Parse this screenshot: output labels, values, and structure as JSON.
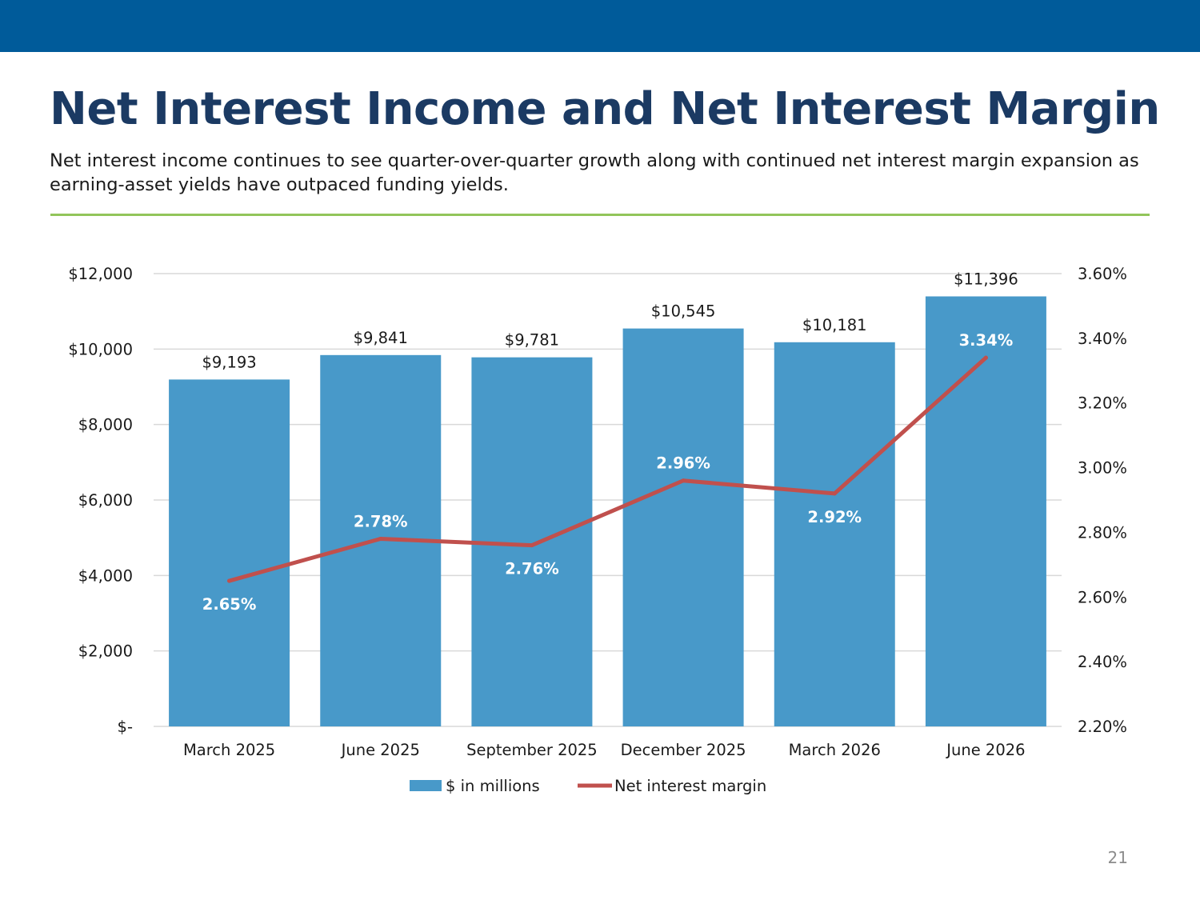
{
  "header": {
    "title": "Net Interest Income and Net Interest Margin",
    "subtitle": "Net interest income continues to see quarter-over-quarter growth along with continued net interest margin expansion as earning-asset yields have outpaced funding yields."
  },
  "colors": {
    "top_bar": "#005b9a",
    "title": "#1b3a63",
    "divider": "#92c55a",
    "bar": "#4899c9",
    "line": "#c0504d",
    "gridline": "#d9d9d9"
  },
  "chart_data": {
    "type": "bar",
    "categories": [
      "March 2025",
      "June 2025",
      "September 2025",
      "December 2025",
      "March 2026",
      "June 2026"
    ],
    "series": [
      {
        "name": "$ in millions",
        "type": "bar",
        "axis": "left",
        "values": [
          9193,
          9841,
          9781,
          10545,
          10181,
          11396
        ],
        "labels": [
          "$9,193",
          "$9,841",
          "$9,781",
          "$10,545",
          "$10,181",
          "$11,396"
        ]
      },
      {
        "name": "Net interest margin",
        "type": "line",
        "axis": "right",
        "values": [
          2.65,
          2.78,
          2.76,
          2.96,
          2.92,
          3.34
        ],
        "labels": [
          "2.65%",
          "2.78%",
          "2.76%",
          "2.96%",
          "2.92%",
          "3.34%"
        ]
      }
    ],
    "y_left": {
      "range": [
        0,
        12000
      ],
      "ticks": [
        0,
        2000,
        4000,
        6000,
        8000,
        10000,
        12000
      ],
      "tick_labels": [
        "$-",
        "$2,000",
        "$4,000",
        "$6,000",
        "$8,000",
        "$10,000",
        "$12,000"
      ]
    },
    "y_right": {
      "range": [
        2.2,
        3.6
      ],
      "ticks": [
        2.2,
        2.4,
        2.6,
        2.8,
        3.0,
        3.2,
        3.4,
        3.6
      ],
      "tick_labels": [
        "2.20%",
        "2.40%",
        "2.60%",
        "2.80%",
        "3.00%",
        "3.20%",
        "3.40%",
        "3.60%"
      ]
    },
    "grid": true,
    "legend_position": "bottom-center"
  },
  "footer": {
    "page_number": "21"
  }
}
